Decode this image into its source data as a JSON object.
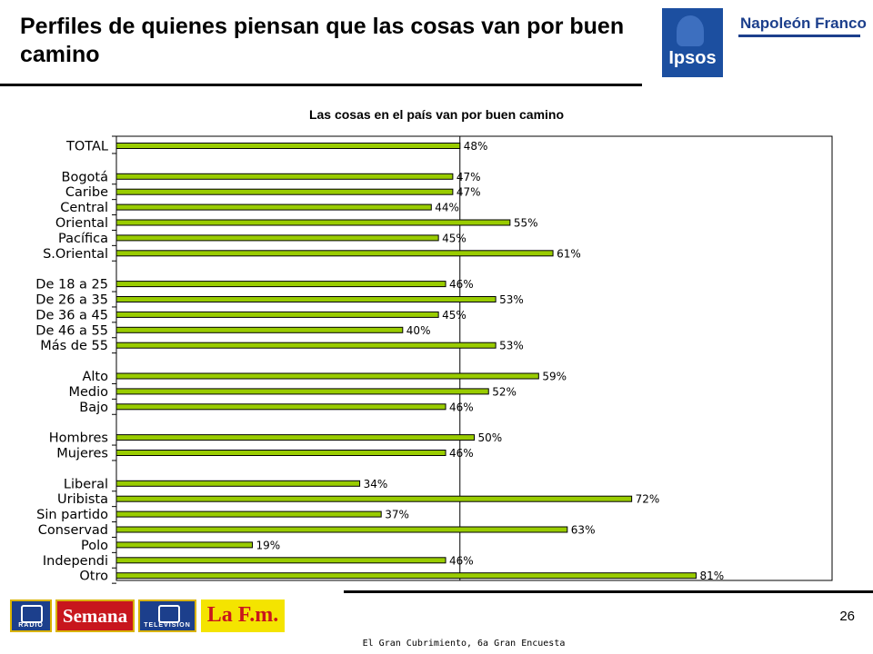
{
  "header": {
    "title": "Perfiles de quienes piensan que las cosas van por buen camino",
    "logo_primary": "Ipsos",
    "logo_secondary": "Napoleón Franco"
  },
  "chart_data": {
    "type": "bar",
    "orientation": "horizontal",
    "title": "Las cosas en el país van por buen camino",
    "xlabel": "",
    "ylabel": "",
    "xlim": [
      0,
      100
    ],
    "reference_line": 48,
    "bar_color": "#99cc00",
    "value_suffix": "%",
    "grid": false,
    "groups": [
      {
        "categories": [
          "TOTAL"
        ],
        "values": [
          48
        ]
      },
      {
        "categories": [
          "Bogotá",
          "Caribe",
          "Central",
          "Oriental",
          "Pacífica",
          "S.Oriental"
        ],
        "values": [
          47,
          47,
          44,
          55,
          45,
          61
        ]
      },
      {
        "categories": [
          "De 18 a 25",
          "De 26 a 35",
          "De 36 a 45",
          "De 46 a 55",
          "Más de 55"
        ],
        "values": [
          46,
          53,
          45,
          40,
          53
        ]
      },
      {
        "categories": [
          "Alto",
          "Medio",
          "Bajo"
        ],
        "values": [
          59,
          52,
          46
        ]
      },
      {
        "categories": [
          "Hombres",
          "Mujeres"
        ],
        "values": [
          50,
          46
        ]
      },
      {
        "categories": [
          "Liberal",
          "Uribista",
          "Sin partido",
          "Conservad",
          "Polo",
          "Independi",
          "Otro"
        ],
        "values": [
          34,
          72,
          37,
          63,
          19,
          46,
          81
        ]
      }
    ]
  },
  "footer": {
    "page_number": "26",
    "caption": "El Gran Cubrimiento, 6a Gran Encuesta",
    "brands": [
      {
        "name": "RCN",
        "sub": "RADIO"
      },
      {
        "name": "Semana"
      },
      {
        "name": "RCN",
        "sub": "TELEVISION"
      },
      {
        "name": "La F.m."
      }
    ]
  }
}
